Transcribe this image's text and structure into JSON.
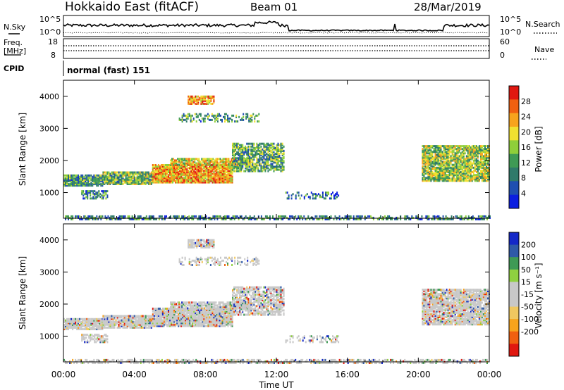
{
  "header": {
    "title": "Hokkaido East (fitACF)",
    "beam": "Beam 01",
    "date": "28/Mar/2019"
  },
  "top_panels": {
    "nsky_label": "N.Sky",
    "nsky_ticks": [
      "10^5",
      "10^0"
    ],
    "nsearch_label": "N.Search",
    "freq_label": [
      "Freq.",
      "[MHz]"
    ],
    "freq_ticks": [
      "18",
      "8"
    ],
    "nave_ticks": [
      "60",
      "0"
    ],
    "nave_label": "Nave",
    "cpid_label": "CPID",
    "cpid_text": "normal (fast) 151"
  },
  "colors": {
    "power_scale": [
      "#0b1ee0",
      "#1f4fb0",
      "#2f7a6a",
      "#3f9a55",
      "#8fcf3a",
      "#f0e030",
      "#f7a31c",
      "#f06010",
      "#e01810"
    ],
    "velocity_scale": [
      "#e01810",
      "#f06010",
      "#f7a31c",
      "#f0c860",
      "#c8c8c8",
      "#c8c8c8",
      "#8fd040",
      "#3f9a55",
      "#2f5aa8",
      "#1428c8"
    ]
  },
  "chart_data": [
    {
      "type": "heatmap",
      "name": "power",
      "ylabel": "Slant Range [km]",
      "yticks": [
        1000,
        2000,
        3000,
        4000
      ],
      "ylim": [
        200,
        4500
      ],
      "xlim": [
        0,
        24
      ],
      "colorbar_label": "Power [dB]",
      "colorbar_ticks": [
        4,
        8,
        12,
        16,
        20,
        24,
        28
      ],
      "colorbar_range": [
        0,
        32
      ]
    },
    {
      "type": "heatmap",
      "name": "velocity",
      "ylabel": "Slant Range [km]",
      "yticks": [
        1000,
        2000,
        3000,
        4000
      ],
      "ylim": [
        200,
        4500
      ],
      "xlim": [
        0,
        24
      ],
      "xlabel": "Time UT",
      "xticks": [
        "00:00",
        "04:00",
        "08:00",
        "12:00",
        "16:00",
        "20:00",
        "00:00"
      ],
      "colorbar_label": "Velocity [m s⁻¹]",
      "colorbar_ticks": [
        -200,
        -100,
        -50,
        -15,
        15,
        50,
        100,
        200
      ]
    }
  ]
}
